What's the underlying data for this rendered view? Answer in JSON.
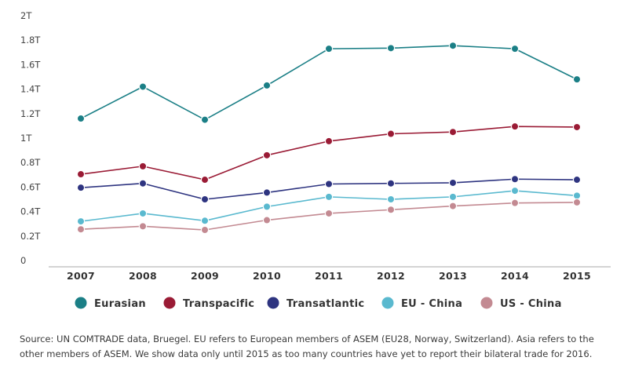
{
  "chart_data": {
    "type": "line",
    "title": "",
    "xlabel": "",
    "ylabel": "",
    "categories": [
      "2007",
      "2008",
      "2009",
      "2010",
      "2011",
      "2012",
      "2013",
      "2014",
      "2015"
    ],
    "yticks": [
      {
        "value": 0,
        "label": "0"
      },
      {
        "value": 0.2,
        "label": "0.2T"
      },
      {
        "value": 0.4,
        "label": "0.4T"
      },
      {
        "value": 0.6,
        "label": "0.6T"
      },
      {
        "value": 0.8,
        "label": "0.8T"
      },
      {
        "value": 1.0,
        "label": "1T"
      },
      {
        "value": 1.2,
        "label": "1.2T"
      },
      {
        "value": 1.4,
        "label": "1.4T"
      },
      {
        "value": 1.6,
        "label": "1.6T"
      },
      {
        "value": 1.8,
        "label": "1.8T"
      },
      {
        "value": 2.0,
        "label": "2T"
      }
    ],
    "ylim": [
      0,
      2
    ],
    "grid": false,
    "legend_position": "bottom",
    "series": [
      {
        "name": "Eurasian",
        "color": "#1b7f86",
        "values": [
          1.16,
          1.42,
          1.15,
          1.43,
          1.73,
          1.735,
          1.755,
          1.73,
          1.48
        ]
      },
      {
        "name": "Transpacific",
        "color": "#9a1b35",
        "values": [
          0.705,
          0.77,
          0.66,
          0.86,
          0.975,
          1.035,
          1.05,
          1.095,
          1.09
        ]
      },
      {
        "name": "Transatlantic",
        "color": "#2e3480",
        "values": [
          0.595,
          0.63,
          0.5,
          0.555,
          0.625,
          0.63,
          0.635,
          0.665,
          0.66
        ]
      },
      {
        "name": "EU - China",
        "color": "#5ab9cf",
        "values": [
          0.32,
          0.385,
          0.325,
          0.44,
          0.52,
          0.5,
          0.52,
          0.57,
          0.53
        ]
      },
      {
        "name": "US - China",
        "color": "#c38a92",
        "values": [
          0.255,
          0.28,
          0.25,
          0.33,
          0.385,
          0.415,
          0.445,
          0.47,
          0.475
        ]
      }
    ]
  },
  "source_note": "Source: UN COMTRADE data, Bruegel. EU refers to European members of ASEM (EU28, Norway, Switzerland). Asia refers to the other members of ASEM. We show data only until 2015 as too many countries have yet to report their bilateral trade for 2016."
}
